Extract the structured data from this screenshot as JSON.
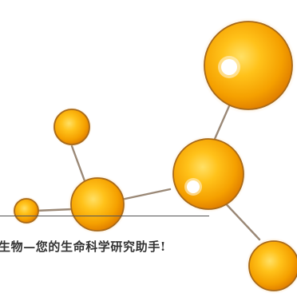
{
  "tagline": "生物—您的生命科学研究助手!",
  "colors": {
    "orb_core": "#ffb400",
    "orb_mid": "#f5a000",
    "orb_edge": "#e07e00",
    "orb_rim": "#a86a1a",
    "connector": "#9a8876",
    "divider": "#555555",
    "text": "#333333"
  }
}
